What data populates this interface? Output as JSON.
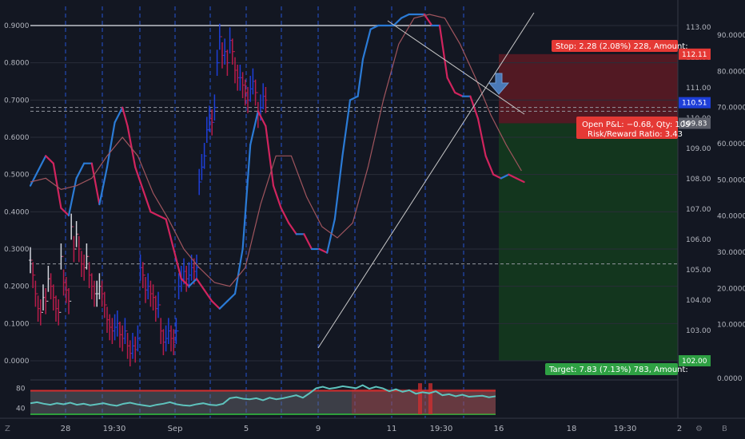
{
  "chart_data": {
    "type": "line",
    "colors": {
      "background": "#131722",
      "grid": "#2a2e39",
      "session_break": "#2962ff",
      "up_bar": "#1e3fd8",
      "down_bar": "#b71c4a",
      "neutral_bar": "#d1d4dc",
      "fast_up": "#2b7bd6",
      "fast_down": "#d1245e",
      "slow_line": "#a0555e",
      "trend_line": "#c8c8c8",
      "risk_zone": "#5a1a24",
      "reward_zone": "#143a1e",
      "osc_line": "#5ec3bd",
      "osc_band": "#6e6e76",
      "osc_upper": "#d32f2f",
      "osc_lower": "#2e9e3c",
      "stop_label": "#e53935",
      "target_label": "#2ea043",
      "price_label": "#1e3fd8"
    },
    "time_axis": {
      "labels": [
        "28",
        "19:30",
        "Sep",
        "5",
        "9",
        "11",
        "19:30",
        "16",
        "18",
        "19:30",
        "2"
      ]
    },
    "left_axis": {
      "ticks": [
        "0.9000",
        "0.8000",
        "0.7000",
        "0.6000",
        "0.5000",
        "0.4000",
        "0.3000",
        "0.2000",
        "0.1000",
        "0.0000"
      ],
      "values": [
        0.9,
        0.8,
        0.7,
        0.6,
        0.5,
        0.4,
        0.3,
        0.2,
        0.1,
        0.0
      ],
      "ylim": [
        0.0,
        0.9
      ]
    },
    "price_axis": {
      "ticks": [
        "113.00",
        "112.00",
        "111.00",
        "110.00",
        "109.00",
        "108.00",
        "107.00",
        "106.00",
        "105.00",
        "104.00",
        "103.00",
        "102.00"
      ],
      "values": [
        113,
        112,
        111,
        110,
        109,
        108,
        107,
        106,
        105,
        104,
        103,
        102
      ],
      "markers": [
        {
          "text": "112.11",
          "value": 112.11,
          "kind": "stop"
        },
        {
          "text": "110.51",
          "value": 110.51,
          "kind": "price"
        },
        {
          "text": "109.83",
          "value": 109.83,
          "kind": "entry"
        },
        {
          "text": "102.00",
          "value": 102.0,
          "kind": "target"
        }
      ]
    },
    "pct_axis": {
      "ticks": [
        "90.0000",
        "80.0000",
        "70.0000",
        "60.0000",
        "50.0000",
        "40.0000",
        "30.0000",
        "20.0000",
        "10.0000",
        "0.0000"
      ],
      "values": [
        90,
        80,
        70,
        60,
        50,
        40,
        30,
        20,
        10,
        0
      ]
    },
    "position": {
      "stop_label": "Stop: 2.28 (2.08%) 228, Amount:",
      "target_label": "Target: 7.83 (7.13%) 783, Amount:",
      "pnl_line1": "Open P&L: −0.68, Qty: 109",
      "pnl_line2": "Risk/Reward Ratio: 3.43",
      "entry": 109.83,
      "stop": 112.11,
      "target": 102.0
    },
    "series": [
      {
        "kind": "fast_line",
        "x": [
          0,
          3,
          6,
          9,
          12,
          15,
          18,
          21,
          24,
          27,
          30,
          33,
          36,
          38,
          41,
          44,
          47,
          50,
          53,
          56,
          59,
          62,
          65,
          68,
          71,
          74,
          77,
          80,
          83,
          86,
          89,
          92,
          95,
          98,
          101,
          104,
          107,
          110,
          113,
          116,
          119,
          122,
          125,
          128,
          130,
          133,
          136,
          139,
          142,
          145,
          148,
          151,
          154,
          157,
          160,
          163,
          166,
          169,
          172,
          175,
          178,
          181,
          184,
          187,
          190,
          193
        ],
        "y": [
          0.47,
          0.51,
          0.55,
          0.53,
          0.41,
          0.39,
          0.49,
          0.53,
          0.53,
          0.42,
          0.52,
          0.64,
          0.68,
          0.63,
          0.52,
          0.46,
          0.4,
          0.39,
          0.38,
          0.3,
          0.22,
          0.2,
          0.22,
          0.19,
          0.16,
          0.14,
          0.16,
          0.18,
          0.3,
          0.58,
          0.67,
          0.63,
          0.47,
          0.41,
          0.37,
          0.34,
          0.34,
          0.3,
          0.3,
          0.29,
          0.38,
          0.55,
          0.7,
          0.71,
          0.81,
          0.89,
          0.9,
          0.9,
          0.9,
          0.92,
          0.93,
          0.93,
          0.93,
          0.9,
          0.9,
          0.76,
          0.72,
          0.71,
          0.71,
          0.65,
          0.55,
          0.5,
          0.49,
          0.5,
          0.49,
          0.48
        ]
      },
      {
        "kind": "slow_line",
        "x": [
          0,
          6,
          12,
          18,
          24,
          30,
          36,
          42,
          48,
          54,
          60,
          66,
          72,
          78,
          84,
          90,
          96,
          102,
          108,
          114,
          120,
          126,
          132,
          138,
          144,
          150,
          156,
          162,
          168,
          174,
          180,
          186,
          192
        ],
        "y": [
          0.48,
          0.49,
          0.46,
          0.47,
          0.49,
          0.55,
          0.6,
          0.55,
          0.45,
          0.38,
          0.3,
          0.25,
          0.21,
          0.2,
          0.25,
          0.42,
          0.55,
          0.55,
          0.44,
          0.36,
          0.33,
          0.37,
          0.52,
          0.7,
          0.85,
          0.92,
          0.93,
          0.92,
          0.85,
          0.76,
          0.66,
          0.58,
          0.51
        ]
      },
      {
        "kind": "price_bars",
        "start": 0,
        "values": [
          0.27,
          0.23,
          0.18,
          0.14,
          0.13,
          0.17,
          0.16,
          0.22,
          0.2,
          0.17,
          0.14,
          0.13,
          0.28,
          0.21,
          0.19,
          0.16,
          0.36,
          0.3,
          0.34,
          0.3,
          0.26,
          0.25,
          0.28,
          0.23,
          0.2,
          0.18,
          0.18,
          0.2,
          0.18,
          0.15,
          0.11,
          0.09,
          0.08,
          0.09,
          0.1,
          0.07,
          0.06,
          0.08,
          0.04,
          0.02,
          0.04,
          0.03,
          0.06,
          0.25,
          0.23,
          0.19,
          0.2,
          0.18,
          0.17,
          0.14,
          0.15,
          0.08,
          0.05,
          0.06,
          0.08,
          0.06,
          0.05,
          0.08,
          0.2,
          0.22,
          0.24,
          0.22,
          0.23,
          0.25,
          0.24,
          0.25,
          0.48,
          0.52,
          0.55,
          0.62,
          0.65,
          0.64,
          0.68,
          0.8,
          0.87,
          0.82,
          0.83,
          0.8,
          0.86,
          0.83,
          0.78,
          0.76,
          0.76,
          0.74,
          0.72,
          0.7,
          0.73,
          0.75,
          0.72,
          0.66,
          0.68,
          0.71,
          0.7
        ]
      }
    ],
    "oscillator": {
      "ticks": [
        "80",
        "40"
      ],
      "values": [
        80,
        40
      ],
      "ylim": [
        20,
        95
      ],
      "upper_band": 75,
      "lower_band": 28,
      "line": [
        50,
        52,
        49,
        47,
        50,
        48,
        51,
        47,
        49,
        46,
        48,
        50,
        47,
        45,
        49,
        51,
        48,
        46,
        44,
        47,
        49,
        52,
        48,
        46,
        45,
        48,
        50,
        47,
        46,
        49,
        60,
        62,
        59,
        58,
        60,
        56,
        61,
        58,
        60,
        63,
        66,
        61,
        70,
        80,
        83,
        79,
        81,
        84,
        82,
        80,
        86,
        79,
        83,
        80,
        74,
        78,
        73,
        76,
        69,
        72,
        70,
        74,
        66,
        68,
        64,
        67,
        63,
        64,
        65,
        62,
        64
      ]
    }
  }
}
